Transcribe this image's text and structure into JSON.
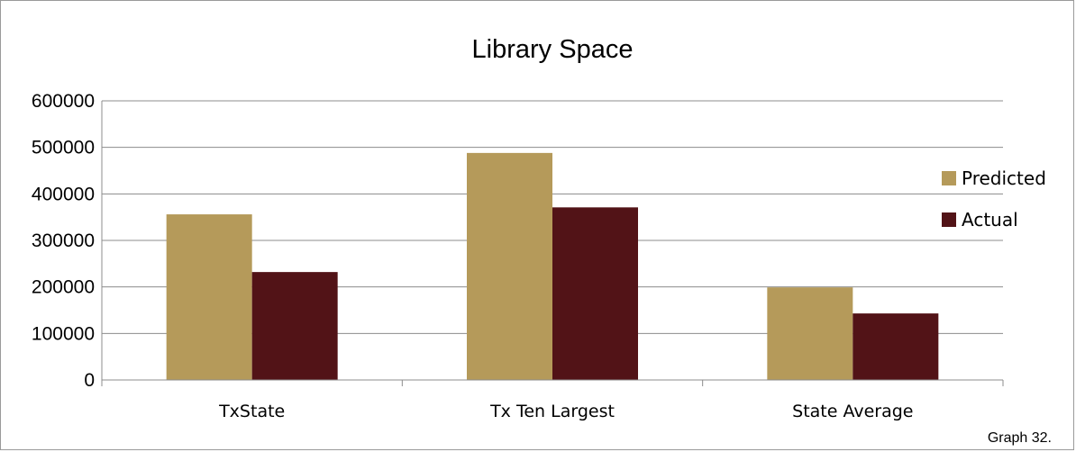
{
  "chart_data": {
    "type": "bar",
    "title": "Library Space",
    "xlabel": "",
    "ylabel": "",
    "categories": [
      "TxState",
      "Tx Ten Largest",
      "State Average"
    ],
    "series": [
      {
        "name": "Predicted",
        "values": [
          356000,
          488000,
          199000
        ],
        "color": "#B59A5A"
      },
      {
        "name": "Actual",
        "values": [
          232000,
          371000,
          143000
        ],
        "color": "#521317"
      }
    ],
    "ylim": [
      0,
      600000
    ],
    "yticks": [
      "0",
      "100000",
      "200000",
      "300000",
      "400000",
      "500000",
      "600000"
    ],
    "grid": true,
    "legend": "right"
  },
  "caption": "Graph 32."
}
